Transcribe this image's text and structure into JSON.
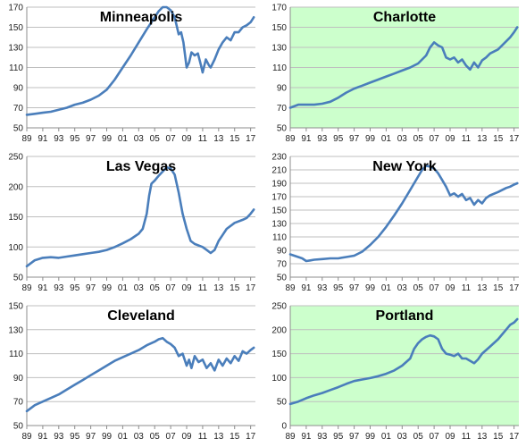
{
  "chart_data": [
    {
      "type": "line",
      "title": "Minneapolis",
      "background": "#ffffff",
      "line_color": "#4a7ebb",
      "ylim": [
        50,
        170
      ],
      "yticks": [
        50,
        70,
        90,
        110,
        130,
        150,
        170
      ],
      "xlim": [
        1989,
        2017.6
      ],
      "xticks": [
        1989,
        1991,
        1993,
        1995,
        1997,
        1999,
        2001,
        2003,
        2005,
        2007,
        2009,
        2011,
        2013,
        2015,
        2017
      ],
      "xtick_labels": [
        "89",
        "91",
        "93",
        "95",
        "97",
        "99",
        "01",
        "03",
        "05",
        "07",
        "09",
        "11",
        "13",
        "15",
        "17"
      ],
      "grid": "horizontal",
      "series": [
        {
          "x": [
            1989,
            1990,
            1991,
            1992,
            1993,
            1994,
            1995,
            1996,
            1997,
            1998,
            1999,
            2000,
            2001,
            2002,
            2003,
            2004,
            2005,
            2005.5,
            2006,
            2006.5,
            2007,
            2007.5,
            2008,
            2008.3,
            2008.6,
            2009,
            2009.3,
            2009.6,
            2010,
            2010.4,
            2010.8,
            2011,
            2011.4,
            2011.8,
            2012,
            2012.5,
            2013,
            2013.5,
            2014,
            2014.5,
            2015,
            2015.5,
            2016,
            2016.5,
            2017,
            2017.4
          ],
          "y": [
            63,
            64,
            65,
            66,
            68,
            70,
            73,
            75,
            78,
            82,
            88,
            98,
            110,
            122,
            135,
            148,
            160,
            166,
            170,
            170,
            167,
            160,
            143,
            145,
            135,
            110,
            115,
            125,
            122,
            124,
            112,
            105,
            118,
            112,
            110,
            118,
            128,
            135,
            140,
            137,
            145,
            145,
            150,
            152,
            155,
            160
          ]
        }
      ]
    },
    {
      "type": "line",
      "title": "Charlotte",
      "background": "#ccffcc",
      "line_color": "#4a7ebb",
      "ylim": [
        50,
        170
      ],
      "yticks": [
        50,
        70,
        90,
        110,
        130,
        150,
        170
      ],
      "xlim": [
        1989,
        2017.6
      ],
      "xticks": [
        1989,
        1991,
        1993,
        1995,
        1997,
        1999,
        2001,
        2003,
        2005,
        2007,
        2009,
        2011,
        2013,
        2015,
        2017
      ],
      "xtick_labels": [
        "89",
        "91",
        "93",
        "95",
        "97",
        "99",
        "01",
        "03",
        "05",
        "07",
        "09",
        "11",
        "13",
        "15",
        "17"
      ],
      "grid": "horizontal",
      "series": [
        {
          "x": [
            1989,
            1990,
            1991,
            1992,
            1993,
            1994,
            1995,
            1996,
            1997,
            1998,
            1999,
            2000,
            2001,
            2002,
            2003,
            2004,
            2005,
            2006,
            2006.5,
            2007,
            2007.5,
            2008,
            2008.5,
            2009,
            2009.5,
            2010,
            2010.5,
            2011,
            2011.5,
            2012,
            2012.5,
            2013,
            2013.5,
            2014,
            2015,
            2016,
            2016.5,
            2017,
            2017.4
          ],
          "y": [
            70,
            73,
            73,
            73,
            74,
            76,
            80,
            85,
            89,
            92,
            95,
            98,
            101,
            104,
            107,
            110,
            114,
            122,
            130,
            135,
            132,
            130,
            120,
            118,
            120,
            115,
            118,
            112,
            108,
            115,
            110,
            117,
            120,
            124,
            128,
            136,
            140,
            145,
            150
          ]
        }
      ]
    },
    {
      "type": "line",
      "title": "Las Vegas",
      "background": "#ffffff",
      "line_color": "#4a7ebb",
      "ylim": [
        50,
        250
      ],
      "yticks": [
        50,
        100,
        150,
        200,
        250
      ],
      "xlim": [
        1989,
        2017.6
      ],
      "xticks": [
        1989,
        1991,
        1993,
        1995,
        1997,
        1999,
        2001,
        2003,
        2005,
        2007,
        2009,
        2011,
        2013,
        2015,
        2017
      ],
      "xtick_labels": [
        "89",
        "91",
        "93",
        "95",
        "97",
        "99",
        "01",
        "03",
        "05",
        "07",
        "09",
        "11",
        "13",
        "15",
        "17"
      ],
      "grid": "horizontal",
      "series": [
        {
          "x": [
            1989,
            1990,
            1991,
            1992,
            1993,
            1994,
            1995,
            1996,
            1997,
            1998,
            1999,
            2000,
            2001,
            2002,
            2003,
            2003.5,
            2004,
            2004.3,
            2004.6,
            2005,
            2005.5,
            2006,
            2006.5,
            2007,
            2007.5,
            2008,
            2008.5,
            2009,
            2009.5,
            2010,
            2011,
            2011.5,
            2012,
            2012.5,
            2013,
            2013.5,
            2014,
            2015,
            2016,
            2016.5,
            2017,
            2017.4
          ],
          "y": [
            68,
            78,
            82,
            83,
            82,
            84,
            86,
            88,
            90,
            92,
            95,
            100,
            106,
            113,
            122,
            130,
            155,
            185,
            205,
            210,
            218,
            225,
            232,
            230,
            220,
            190,
            155,
            130,
            110,
            105,
            100,
            95,
            90,
            95,
            110,
            120,
            130,
            140,
            145,
            148,
            155,
            162
          ]
        }
      ]
    },
    {
      "type": "line",
      "title": "New York",
      "background": "#ffffff",
      "line_color": "#4a7ebb",
      "ylim": [
        50,
        230
      ],
      "yticks": [
        50,
        70,
        90,
        110,
        130,
        150,
        170,
        190,
        210,
        230
      ],
      "xlim": [
        1989,
        2017.6
      ],
      "xticks": [
        1989,
        1991,
        1993,
        1995,
        1997,
        1999,
        2001,
        2003,
        2005,
        2007,
        2009,
        2011,
        2013,
        2015,
        2017
      ],
      "xtick_labels": [
        "89",
        "91",
        "93",
        "95",
        "97",
        "99",
        "01",
        "03",
        "05",
        "07",
        "09",
        "11",
        "13",
        "15",
        "17"
      ],
      "grid": "horizontal",
      "series": [
        {
          "x": [
            1989,
            1989.5,
            1990,
            1990.5,
            1991,
            1991.5,
            1992,
            1993,
            1994,
            1995,
            1996,
            1997,
            1998,
            1999,
            2000,
            2001,
            2002,
            2003,
            2004,
            2005,
            2005.5,
            2006,
            2006.5,
            2007,
            2007.5,
            2008,
            2008.5,
            2009,
            2009.5,
            2010,
            2010.5,
            2011,
            2011.5,
            2012,
            2012.5,
            2013,
            2013.5,
            2014,
            2015,
            2016,
            2016.5,
            2017,
            2017.4
          ],
          "y": [
            84,
            82,
            80,
            78,
            74,
            75,
            76,
            77,
            78,
            78,
            80,
            82,
            88,
            98,
            110,
            125,
            142,
            160,
            180,
            200,
            210,
            216,
            215,
            212,
            205,
            195,
            185,
            172,
            175,
            170,
            174,
            165,
            168,
            158,
            165,
            160,
            168,
            172,
            177,
            183,
            185,
            188,
            190
          ]
        }
      ]
    },
    {
      "type": "line",
      "title": "Cleveland",
      "background": "#ffffff",
      "line_color": "#4a7ebb",
      "ylim": [
        50,
        150
      ],
      "yticks": [
        50,
        70,
        90,
        110,
        130,
        150
      ],
      "xlim": [
        1989,
        2017.6
      ],
      "xticks": [
        1989,
        1991,
        1993,
        1995,
        1997,
        1999,
        2001,
        2003,
        2005,
        2007,
        2009,
        2011,
        2013,
        2015,
        2017
      ],
      "xtick_labels": [
        "89",
        "91",
        "93",
        "95",
        "97",
        "99",
        "01",
        "03",
        "05",
        "07",
        "09",
        "11",
        "13",
        "15",
        "17"
      ],
      "grid": "horizontal",
      "series": [
        {
          "x": [
            1989,
            1990,
            1991,
            1992,
            1993,
            1994,
            1995,
            1996,
            1997,
            1998,
            1999,
            2000,
            2001,
            2002,
            2003,
            2004,
            2005,
            2005.5,
            2006,
            2006.5,
            2007,
            2007.5,
            2008,
            2008.5,
            2009,
            2009.3,
            2009.6,
            2010,
            2010.5,
            2011,
            2011.5,
            2012,
            2012.5,
            2013,
            2013.5,
            2014,
            2014.5,
            2015,
            2015.5,
            2016,
            2016.5,
            2017,
            2017.4
          ],
          "y": [
            62,
            67,
            70,
            73,
            76,
            80,
            84,
            88,
            92,
            96,
            100,
            104,
            107,
            110,
            113,
            117,
            120,
            122,
            123,
            120,
            118,
            115,
            108,
            110,
            100,
            105,
            98,
            108,
            103,
            105,
            98,
            102,
            96,
            105,
            100,
            106,
            102,
            108,
            104,
            112,
            110,
            113,
            115
          ]
        }
      ]
    },
    {
      "type": "line",
      "title": "Portland",
      "background": "#ccffcc",
      "line_color": "#4a7ebb",
      "ylim": [
        0,
        250
      ],
      "yticks": [
        0,
        50,
        100,
        150,
        200,
        250
      ],
      "xlim": [
        1989,
        2017.6
      ],
      "xticks": [
        1989,
        1991,
        1993,
        1995,
        1997,
        1999,
        2001,
        2003,
        2005,
        2007,
        2009,
        2011,
        2013,
        2015,
        2017
      ],
      "xtick_labels": [
        "89",
        "91",
        "93",
        "95",
        "97",
        "99",
        "01",
        "03",
        "05",
        "07",
        "09",
        "11",
        "13",
        "15",
        "17"
      ],
      "grid": "horizontal",
      "series": [
        {
          "x": [
            1989,
            1990,
            1991,
            1992,
            1993,
            1994,
            1995,
            1996,
            1997,
            1998,
            1999,
            2000,
            2001,
            2002,
            2003,
            2004,
            2004.5,
            2005,
            2005.5,
            2006,
            2006.5,
            2007,
            2007.5,
            2008,
            2008.5,
            2009,
            2009.5,
            2010,
            2010.5,
            2011,
            2011.5,
            2012,
            2012.5,
            2013,
            2014,
            2015,
            2016,
            2016.5,
            2017,
            2017.4
          ],
          "y": [
            45,
            50,
            57,
            63,
            68,
            74,
            80,
            87,
            93,
            96,
            99,
            103,
            108,
            115,
            125,
            140,
            160,
            172,
            180,
            185,
            188,
            186,
            180,
            160,
            150,
            148,
            145,
            150,
            140,
            140,
            135,
            130,
            138,
            150,
            165,
            180,
            200,
            210,
            215,
            222
          ]
        }
      ]
    }
  ]
}
